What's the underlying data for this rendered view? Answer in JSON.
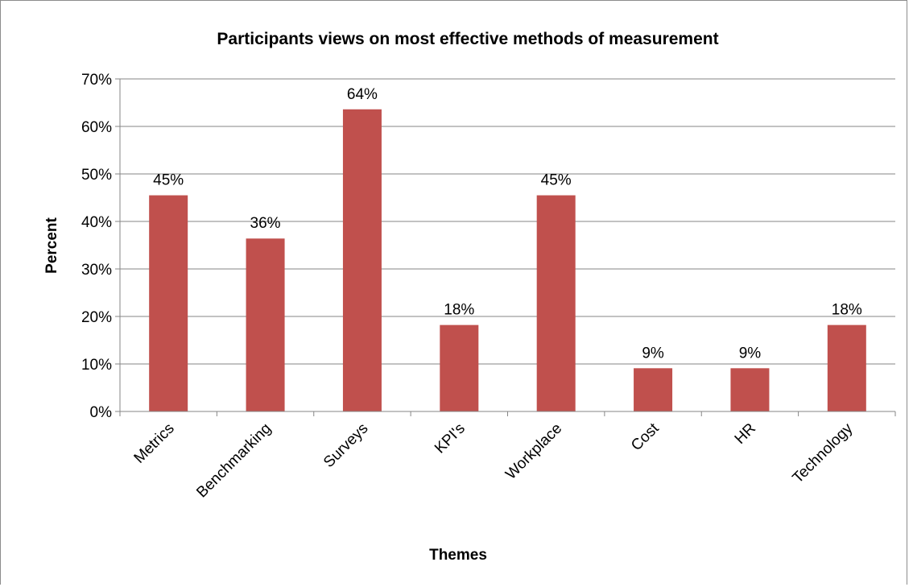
{
  "chart_data": {
    "type": "bar",
    "title": "Participants views on most effective methods of measurement",
    "xlabel": "Themes",
    "ylabel": "Percent",
    "categories": [
      "Metrics",
      "Benchmarking",
      "Surveys",
      "KPI's",
      "Workplace",
      "Cost",
      "HR",
      "Technology"
    ],
    "values": [
      45.5,
      36.4,
      63.6,
      18.2,
      45.5,
      9.1,
      9.1,
      18.2
    ],
    "data_labels": [
      "45%",
      "36%",
      "64%",
      "18%",
      "45%",
      "9%",
      "9%",
      "18%"
    ],
    "ylim": [
      0,
      70
    ],
    "yticks": [
      0,
      10,
      20,
      30,
      40,
      50,
      60,
      70
    ],
    "ytick_labels": [
      "0%",
      "10%",
      "20%",
      "30%",
      "40%",
      "50%",
      "60%",
      "70%"
    ],
    "grid": true,
    "legend": "none",
    "bar_color": "#c0504d",
    "grid_color": "#868686"
  }
}
